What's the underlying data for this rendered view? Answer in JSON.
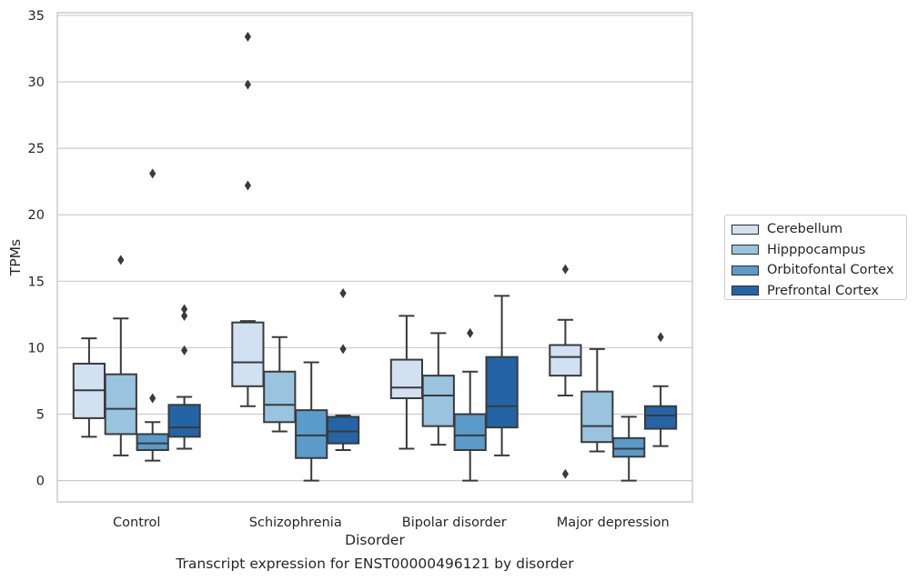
{
  "chart_data": {
    "type": "box",
    "xlabel": "Disorder",
    "ylabel": "TPMs",
    "caption": "Transcript expression for ENST00000496121 by disorder",
    "ylim": [
      -1.6,
      35.2
    ],
    "yticks": [
      0,
      5,
      10,
      15,
      20,
      25,
      30,
      35
    ],
    "grid": "horizontal",
    "legend_position": "right",
    "categories": [
      "Control",
      "Schizophrenia",
      "Bipolar disorder",
      "Major depression"
    ],
    "series": [
      {
        "name": "Cerebellum",
        "color": "#d1e1f2",
        "boxes": [
          {
            "whisker_low": 3.3,
            "q1": 4.7,
            "median": 6.8,
            "q3": 8.8,
            "whisker_high": 10.7,
            "outliers": []
          },
          {
            "whisker_low": 5.6,
            "q1": 7.1,
            "median": 8.9,
            "q3": 11.9,
            "whisker_high": 12.0,
            "outliers": [
              22.2,
              29.8,
              33.4
            ]
          },
          {
            "whisker_low": 2.4,
            "q1": 6.2,
            "median": 7.0,
            "q3": 9.1,
            "whisker_high": 12.4,
            "outliers": []
          },
          {
            "whisker_low": 6.4,
            "q1": 7.9,
            "median": 9.3,
            "q3": 10.2,
            "whisker_high": 12.1,
            "outliers": [
              0.5,
              15.9
            ]
          }
        ]
      },
      {
        "name": "Hipppocampus",
        "color": "#99c3df",
        "boxes": [
          {
            "whisker_low": 1.9,
            "q1": 3.5,
            "median": 5.4,
            "q3": 8.0,
            "whisker_high": 12.2,
            "outliers": [
              16.6
            ]
          },
          {
            "whisker_low": 3.7,
            "q1": 4.4,
            "median": 5.7,
            "q3": 8.2,
            "whisker_high": 10.8,
            "outliers": []
          },
          {
            "whisker_low": 2.7,
            "q1": 4.1,
            "median": 6.4,
            "q3": 7.9,
            "whisker_high": 11.1,
            "outliers": []
          },
          {
            "whisker_low": 2.2,
            "q1": 2.9,
            "median": 4.1,
            "q3": 6.7,
            "whisker_high": 9.9,
            "outliers": []
          }
        ]
      },
      {
        "name": "Orbitofontal Cortex",
        "color": "#5a9bc9",
        "boxes": [
          {
            "whisker_low": 1.5,
            "q1": 2.3,
            "median": 2.8,
            "q3": 3.5,
            "whisker_high": 4.4,
            "outliers": [
              6.2,
              23.1
            ]
          },
          {
            "whisker_low": 0.0,
            "q1": 1.7,
            "median": 3.4,
            "q3": 5.3,
            "whisker_high": 8.9,
            "outliers": []
          },
          {
            "whisker_low": 0.0,
            "q1": 2.3,
            "median": 3.4,
            "q3": 5.0,
            "whisker_high": 8.2,
            "outliers": [
              11.1
            ]
          },
          {
            "whisker_low": 0.0,
            "q1": 1.8,
            "median": 2.4,
            "q3": 3.2,
            "whisker_high": 4.8,
            "outliers": []
          }
        ]
      },
      {
        "name": "Prefrontal Cortex",
        "color": "#2464a6",
        "boxes": [
          {
            "whisker_low": 2.4,
            "q1": 3.3,
            "median": 4.0,
            "q3": 5.7,
            "whisker_high": 6.3,
            "outliers": [
              9.8,
              12.4,
              12.9
            ]
          },
          {
            "whisker_low": 2.3,
            "q1": 2.8,
            "median": 3.7,
            "q3": 4.8,
            "whisker_high": 4.9,
            "outliers": [
              9.9,
              14.1
            ]
          },
          {
            "whisker_low": 1.9,
            "q1": 4.0,
            "median": 5.6,
            "q3": 9.3,
            "whisker_high": 13.9,
            "outliers": []
          },
          {
            "whisker_low": 2.6,
            "q1": 3.9,
            "median": 4.9,
            "q3": 5.6,
            "whisker_high": 7.1,
            "outliers": [
              10.8
            ]
          }
        ]
      }
    ]
  }
}
